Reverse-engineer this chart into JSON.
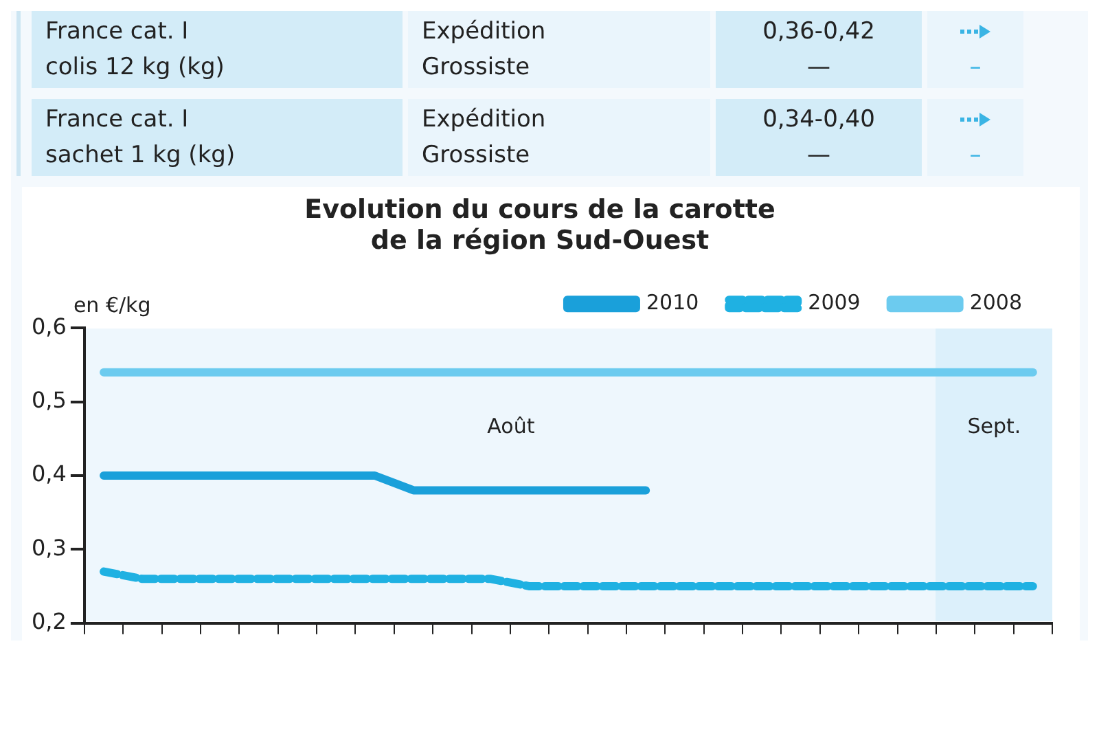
{
  "chart_data": {
    "type": "line",
    "title": "Evolution du cours de la carotte de la région Sud-Ouest",
    "ylabel": "en €/kg",
    "annotations": [
      "France cat. I",
      "colis 12 kg (kg)",
      "Expédition",
      "Grossiste",
      "0,36-0,42",
      "—",
      "–",
      "France cat. I",
      "sachet 1 kg (kg)",
      "Expédition",
      "Grossiste",
      "0,34-0,40",
      "—",
      "–",
      "Août",
      "Sept."
    ],
    "categories": [
      null,
      null,
      null,
      null,
      null,
      null,
      null,
      null,
      null,
      null,
      null,
      null,
      null,
      null,
      null,
      null,
      null,
      null,
      null,
      null,
      null,
      null,
      null,
      null,
      null
    ],
    "ylim": [
      0.2,
      0.6
    ],
    "yticks": [
      {
        "value": 0.2,
        "label": "0,2"
      },
      {
        "value": 0.3,
        "label": "0,3"
      },
      {
        "value": 0.4,
        "label": "0,4"
      },
      {
        "value": 0.5,
        "label": "0,5"
      },
      {
        "value": 0.6,
        "label": "0,6"
      }
    ],
    "tick_labels": "y",
    "legend": "top",
    "marker": "none",
    "series": [
      {
        "name": "2010",
        "color": "#1aa0da",
        "line_style": "solid",
        "values": [
          0.4,
          0.4,
          0.4,
          0.4,
          0.4,
          0.4,
          0.4,
          0.4,
          0.38,
          0.38,
          0.38,
          0.38,
          0.38,
          0.38,
          0.38,
          null,
          null,
          null,
          null,
          null,
          null,
          null,
          null,
          null,
          null
        ]
      },
      {
        "name": "2009",
        "color": "#1fb1e2",
        "line_style": "dashed",
        "values": [
          0.27,
          0.26,
          0.26,
          0.26,
          0.26,
          0.26,
          0.26,
          0.26,
          0.26,
          0.26,
          0.26,
          0.25,
          0.25,
          0.25,
          0.25,
          0.25,
          0.25,
          0.25,
          0.25,
          0.25,
          0.25,
          0.25,
          0.25,
          0.25,
          0.25
        ]
      },
      {
        "name": "2008",
        "color": "#6ccbef",
        "line_style": "solid",
        "values": [
          0.54,
          0.54,
          0.54,
          0.54,
          0.54,
          0.54,
          0.54,
          0.54,
          0.54,
          0.54,
          0.54,
          0.54,
          0.54,
          0.54,
          0.54,
          0.54,
          0.54,
          0.54,
          0.54,
          0.54,
          0.54,
          0.54,
          0.54,
          0.54,
          0.54
        ]
      }
    ]
  }
}
